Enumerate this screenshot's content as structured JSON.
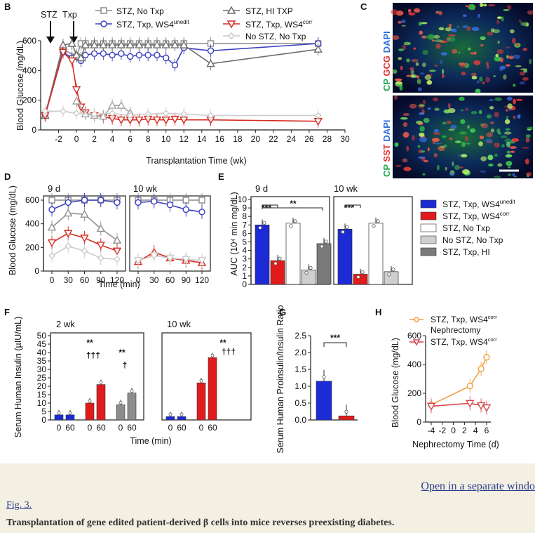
{
  "figure": {
    "panel_letters": {
      "B": "B",
      "C": "C",
      "D": "D",
      "E": "E",
      "F": "F",
      "G": "G",
      "H": "H"
    },
    "legend_top": [
      {
        "label": "STZ, No Txp",
        "color": "#8a8a8a",
        "marker": "square"
      },
      {
        "label": "STZ, Txp, WS4",
        "sup": "unedit",
        "color": "#3a3fc0",
        "marker": "circle"
      },
      {
        "label": "STZ, HI TXP",
        "color": "#6d6d6d",
        "marker": "triangle"
      },
      {
        "label": "STZ, Txp, WS4",
        "sup": "corr",
        "color": "#d52b22",
        "marker": "tri-down"
      },
      {
        "label": "No STZ, No Txp",
        "color": "#c8c8c8",
        "marker": "diamond"
      }
    ],
    "annotations": {
      "stz": "STZ",
      "txp": "Txp"
    },
    "legend_e": [
      {
        "label": "STZ, Txp, WS4",
        "sup": "unedit",
        "color": "#1c2bd6"
      },
      {
        "label": "STZ, Txp, WS4",
        "sup": "corr",
        "color": "#e11b1b"
      },
      {
        "label": "STZ, No Txp",
        "color": "#ffffff"
      },
      {
        "label": "No STZ, No Txp",
        "color": "#cfcfcf"
      },
      {
        "label": "STZ, Txp, HI",
        "color": "#7a7a7a"
      }
    ],
    "legend_h": [
      {
        "label": "STZ, Txp, WS4",
        "sup": "corr",
        "label2": "Nephrectomy",
        "color": "#f0a040"
      },
      {
        "label": "STZ, Txp, WS4",
        "sup": "corr",
        "color": "#d5474f"
      }
    ],
    "panel_c": {
      "top": [
        {
          "t": "CP ",
          "c": "#1faa4a"
        },
        {
          "t": "GCG ",
          "c": "#e53030"
        },
        {
          "t": "DAPI",
          "c": "#2b6fdc"
        }
      ],
      "bottom": [
        {
          "t": "CP ",
          "c": "#1faa4a"
        },
        {
          "t": "SST ",
          "c": "#e53030"
        },
        {
          "t": "DAPI",
          "c": "#2b6fdc"
        }
      ]
    },
    "sig": {
      "d3": "***",
      "d2": "**",
      "t3": "†††",
      "t1": "†"
    }
  },
  "chart_data": [
    {
      "panel": "B",
      "type": "line",
      "xlabel": "Transplantation Time (wk)",
      "ylabel": "Blood Glucose (mg/dL)",
      "xlim": [
        -4,
        30
      ],
      "ylim": [
        0,
        600
      ],
      "xticks": [
        -2,
        0,
        2,
        4,
        6,
        8,
        10,
        12,
        14,
        16,
        18,
        20,
        22,
        24,
        26,
        28,
        30
      ],
      "yticks": [
        0,
        200,
        400,
        600
      ],
      "series": [
        {
          "name": "STZ, No Txp",
          "x": [
            -3.5,
            -1.5,
            0,
            0.5,
            1,
            2,
            3,
            4,
            5,
            6,
            7,
            8,
            9,
            10,
            11,
            12,
            15,
            27
          ],
          "y": [
            100,
            560,
            510,
            600,
            600,
            600,
            600,
            600,
            600,
            600,
            600,
            600,
            600,
            600,
            600,
            600,
            600,
            600
          ],
          "color": "#8a8a8a",
          "marker": "square"
        },
        {
          "name": "STZ, Txp, WS4unedit",
          "x": [
            -3.5,
            -1.5,
            -0.5,
            0.5,
            1,
            2,
            3,
            4,
            5,
            6,
            7,
            8,
            9,
            10,
            11,
            12,
            15,
            27
          ],
          "y": [
            110,
            540,
            500,
            480,
            520,
            530,
            530,
            520,
            530,
            510,
            520,
            520,
            520,
            500,
            450,
            570,
            550,
            600
          ],
          "color": "#3a3fc0",
          "marker": "circle"
        },
        {
          "name": "STZ, HI TXP",
          "x": [
            -3.5,
            -1.5,
            -0.5,
            0,
            0.5,
            1,
            2,
            3,
            4,
            5,
            6,
            7,
            8,
            9,
            10,
            11,
            12,
            15,
            27
          ],
          "y": [
            100,
            590,
            600,
            520,
            500,
            590,
            590,
            590,
            590,
            590,
            590,
            590,
            590,
            590,
            590,
            590,
            590,
            460,
            560
          ],
          "color": "#6d6d6d",
          "marker": "triangle"
        },
        {
          "name": "STZ, Txp, WS4corr",
          "x": [
            -3.5,
            -1.5,
            -0.5,
            0,
            0.5,
            1,
            2,
            3,
            4,
            5,
            6,
            7,
            8,
            9,
            10,
            11,
            12,
            15,
            27
          ],
          "y": [
            100,
            540,
            480,
            280,
            160,
            120,
            100,
            90,
            80,
            70,
            70,
            70,
            75,
            70,
            70,
            75,
            70,
            70,
            60
          ],
          "color": "#d52b22",
          "marker": "tri-down"
        },
        {
          "name": "STZ, HI TXP (later)",
          "x": [
            0,
            1,
            2,
            3,
            4,
            5,
            6
          ],
          "y": [
            200,
            110,
            100,
            95,
            170,
            170,
            120
          ],
          "color": "#a5a5a5",
          "marker": "triangle"
        },
        {
          "name": "No STZ, No Txp",
          "x": [
            -3.5,
            -1.5,
            0,
            2,
            4,
            6,
            8,
            10,
            12,
            15,
            27
          ],
          "y": [
            130,
            130,
            115,
            110,
            115,
            100,
            110,
            115,
            110,
            100,
            100
          ],
          "color": "#cccccc",
          "marker": "diamond"
        }
      ]
    },
    {
      "panel": "D",
      "type": "line",
      "xlabel": "Time (min)",
      "ylabel": "Blood Glucose (mg/dL)",
      "ylim": [
        0,
        600
      ],
      "yticks": [
        0,
        200,
        400,
        600
      ],
      "subpanels": [
        {
          "title": "9 d",
          "x": [
            0,
            30,
            60,
            90,
            120
          ],
          "series": [
            {
              "name": "STZ, No Txp",
              "y": [
                600,
                600,
                600,
                600,
                600
              ],
              "color": "#8a8a8a"
            },
            {
              "name": "STZ, Txp, WS4unedit",
              "y": [
                520,
                580,
                600,
                600,
                580
              ],
              "color": "#3a3fc0"
            },
            {
              "name": "STZ, Txp, HI",
              "y": [
                370,
                490,
                480,
                360,
                260
              ],
              "color": "#8f8f8f"
            },
            {
              "name": "STZ, Txp, WS4corr",
              "y": [
                240,
                320,
                280,
                220,
                170
              ],
              "color": "#d52b22"
            },
            {
              "name": "No STZ, No Txp",
              "y": [
                130,
                210,
                170,
                110,
                100
              ],
              "color": "#cccccc"
            }
          ]
        },
        {
          "title": "10 wk",
          "x": [
            0,
            30,
            60,
            90,
            120
          ],
          "series": [
            {
              "name": "STZ, No Txp",
              "y": [
                600,
                600,
                600,
                600,
                600
              ],
              "color": "#8a8a8a"
            },
            {
              "name": "STZ, Txp, WS4unedit",
              "y": [
                580,
                590,
                560,
                520,
                500
              ],
              "color": "#3a3fc0"
            },
            {
              "name": "STZ, Txp, WS4corr",
              "y": [
                80,
                160,
                110,
                90,
                70
              ],
              "color": "#d52b22"
            },
            {
              "name": "No STZ, No Txp",
              "y": [
                90,
                130,
                110,
                100,
                90
              ],
              "color": "#cccccc"
            }
          ]
        }
      ]
    },
    {
      "panel": "E",
      "type": "bar",
      "ylabel": "AUC (10⁴ min mg/dL)",
      "ylim": [
        0,
        10
      ],
      "yticks": [
        0,
        1,
        2,
        3,
        4,
        5,
        6,
        7,
        8,
        9,
        10
      ],
      "subpanels": [
        {
          "title": "9 d",
          "values": [
            7.0,
            2.8,
            7.2,
            1.7,
            4.8
          ],
          "colors": [
            "#1c2bd6",
            "#e11b1b",
            "#ffffff",
            "#cfcfcf",
            "#7a7a7a"
          ]
        },
        {
          "title": "10 wk",
          "values": [
            6.5,
            1.2,
            7.2,
            1.5
          ],
          "colors": [
            "#1c2bd6",
            "#e11b1b",
            "#ffffff",
            "#cfcfcf"
          ]
        }
      ]
    },
    {
      "panel": "F",
      "type": "bar",
      "xlabel": "Time (min)",
      "ylabel": "Serum Human Insulin (µIU/mL)",
      "ylim": [
        0,
        50
      ],
      "yticks": [
        0,
        5,
        10,
        15,
        20,
        25,
        30,
        35,
        40,
        45,
        50
      ],
      "subpanels": [
        {
          "title": "2 wk",
          "categories": [
            "0",
            "60",
            "0",
            "60",
            "0",
            "60"
          ],
          "values": [
            3,
            3,
            10,
            21,
            9,
            16
          ],
          "colors": [
            "#1c2bd6",
            "#1c2bd6",
            "#e11b1b",
            "#e11b1b",
            "#8c8c8c",
            "#8c8c8c"
          ]
        },
        {
          "title": "10 wk",
          "categories": [
            "0",
            "60",
            "0",
            "60"
          ],
          "values": [
            2,
            2,
            22,
            37
          ],
          "colors": [
            "#1c2bd6",
            "#1c2bd6",
            "#e11b1b",
            "#e11b1b"
          ]
        }
      ]
    },
    {
      "panel": "G",
      "type": "bar",
      "ylabel": "Serum Human Proinsulin/Insulin Ratio",
      "ylim": [
        0,
        2.5
      ],
      "yticks": [
        0.0,
        0.5,
        1.0,
        1.5,
        2.0,
        2.5
      ],
      "values": [
        1.15,
        0.12
      ],
      "colors": [
        "#1c2bd6",
        "#e11b1b"
      ]
    },
    {
      "panel": "H",
      "type": "line",
      "xlabel": "Nephrectomy Time (d)",
      "ylabel": "Blood Glucose (mg/dL)",
      "ylim": [
        0,
        600
      ],
      "yticks": [
        0,
        200,
        400,
        600
      ],
      "xticks": [
        -4,
        -2,
        0,
        2,
        4,
        6
      ],
      "series": [
        {
          "name": "STZ, Txp, WS4corr Nephrectomy",
          "x": [
            -4,
            3,
            5,
            6
          ],
          "y": [
            120,
            250,
            370,
            450
          ],
          "color": "#f0a040"
        },
        {
          "name": "STZ, Txp, WS4corr",
          "x": [
            -4,
            3,
            5,
            6
          ],
          "y": [
            110,
            130,
            115,
            100
          ],
          "color": "#d5474f"
        }
      ]
    }
  ],
  "page": {
    "link": "Open in a separate windo",
    "fig_label": "Fig. 3.",
    "caption": "Transplantation of gene edited patient-derived β cells into mice reverses preexisting diabetes."
  }
}
